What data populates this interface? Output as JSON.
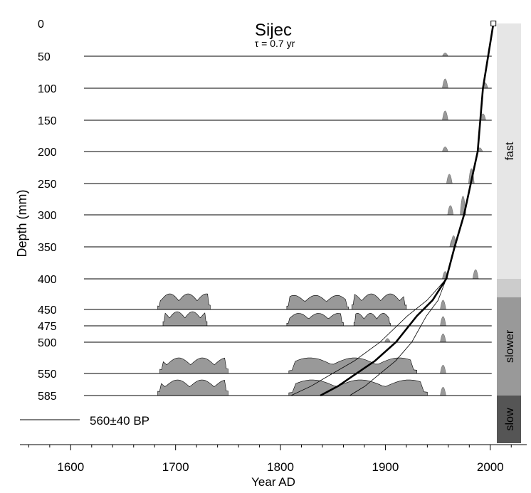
{
  "chart_data": {
    "type": "area",
    "title": "Sijec",
    "subtitle": "τ = 0.7 yr",
    "xlabel": "Year AD",
    "ylabel": "Depth (mm)",
    "xlim": [
      1555,
      2030
    ],
    "x_ticks": [
      1600,
      1700,
      1800,
      1900,
      2000
    ],
    "x_tick_labels": [
      "1600",
      "1700",
      "1800",
      "1900",
      "2000"
    ],
    "grid": false,
    "depth_ticks": [
      "0",
      "50",
      "100",
      "150",
      "200",
      "250",
      "300",
      "350",
      "400",
      "450",
      "475",
      "500",
      "550",
      "585"
    ],
    "rows": [
      {
        "label": "50",
        "peaks": [
          [
            1957,
            0.35
          ]
        ]
      },
      {
        "label": "100",
        "peaks": [
          [
            1957,
            1.0
          ],
          [
            1995,
            0.6
          ]
        ]
      },
      {
        "label": "150",
        "peaks": [
          [
            1957,
            1.0
          ],
          [
            1993,
            0.7
          ]
        ]
      },
      {
        "label": "200",
        "peaks": [
          [
            1957,
            0.5
          ],
          [
            1990,
            0.4
          ]
        ]
      },
      {
        "label": "250",
        "peaks": [
          [
            1961,
            1.0
          ],
          [
            1982,
            1.6
          ]
        ]
      },
      {
        "label": "300",
        "peaks": [
          [
            1962,
            1.0
          ],
          [
            1974,
            2.0
          ]
        ]
      },
      {
        "label": "350",
        "peaks": [
          [
            1964,
            0.8
          ],
          [
            1965,
            1.2
          ]
        ]
      },
      {
        "label": "400",
        "peaks": [
          [
            1957,
            0.8
          ],
          [
            1986,
            1.0
          ]
        ]
      },
      {
        "label": "450",
        "bands": [
          [
            1683,
            1733,
            1.0
          ],
          [
            1806,
            1865,
            0.9
          ],
          [
            1868,
            1920,
            1.0
          ]
        ],
        "peaks": [
          [
            1955,
            1.0
          ]
        ]
      },
      {
        "label": "475",
        "bands": [
          [
            1688,
            1730,
            0.9
          ],
          [
            1806,
            1860,
            0.8
          ],
          [
            1870,
            1905,
            0.8
          ]
        ],
        "peaks": [
          [
            1955,
            1.0
          ]
        ]
      },
      {
        "label": "500",
        "peaks": [
          [
            1955,
            0.9
          ],
          [
            1902,
            0.4
          ]
        ]
      },
      {
        "label": "550",
        "bands": [
          [
            1685,
            1750,
            1.0
          ],
          [
            1808,
            1930,
            1.0
          ]
        ],
        "peaks": [
          [
            1955,
            0.9
          ]
        ]
      },
      {
        "label": "585",
        "bands": [
          [
            1683,
            1750,
            1.0
          ],
          [
            1808,
            1940,
            1.0
          ]
        ],
        "peaks": [
          [
            1955,
            0.9
          ]
        ]
      }
    ],
    "age_model": {
      "year": [
        2003,
        1993,
        1988,
        1975,
        1966,
        1958,
        1945,
        1930,
        1910,
        1890,
        1868,
        1855,
        1838
      ],
      "depth": [
        0,
        100,
        200,
        300,
        350,
        400,
        435,
        460,
        500,
        530,
        555,
        570,
        585
      ]
    },
    "legend": {
      "label": "560±40 BP"
    },
    "growth_bar": [
      {
        "label": "fast",
        "from_depth": 0,
        "to_depth": 400,
        "color": "#e6e6e6"
      },
      {
        "label": "",
        "from_depth": 400,
        "to_depth": 430,
        "color": "#cccccc"
      },
      {
        "label": "slower",
        "from_depth": 430,
        "to_depth": 585,
        "color": "#999999"
      },
      {
        "label": "slow",
        "from_depth": 585,
        "to_depth": 640,
        "color": "#555555"
      }
    ]
  }
}
